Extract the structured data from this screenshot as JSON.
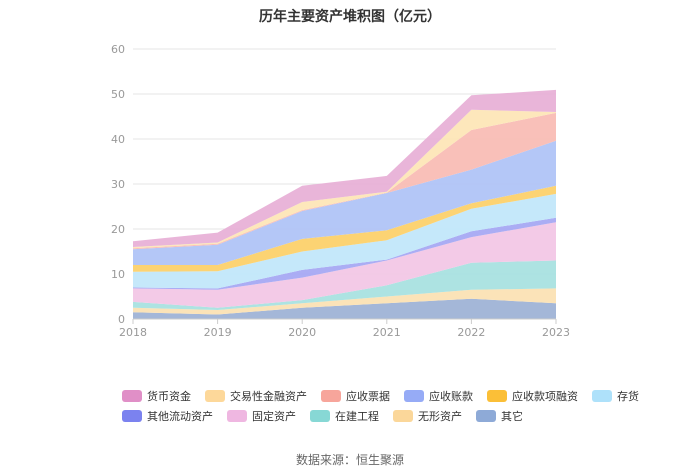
{
  "chart_data": {
    "type": "area",
    "title": "历年主要资产堆积图（亿元）",
    "x": [
      "2018",
      "2019",
      "2020",
      "2021",
      "2022",
      "2023"
    ],
    "ylim": [
      0,
      60
    ],
    "yticks": [
      0,
      10,
      20,
      30,
      40,
      50,
      60
    ],
    "grid": true,
    "legend_position": "bottom",
    "series": [
      {
        "name": "其它",
        "color": "#9fb3d6",
        "values": [
          1.5,
          1.0,
          2.5,
          3.5,
          4.5,
          3.5
        ]
      },
      {
        "name": "无形资产",
        "color": "#fbe1b4",
        "values": [
          1.0,
          1.0,
          1.0,
          1.5,
          2.0,
          3.3
        ]
      },
      {
        "name": "在建工程",
        "color": "#a9e2e0",
        "values": [
          1.3,
          0.5,
          0.7,
          2.5,
          6.0,
          6.2
        ]
      },
      {
        "name": "固定资产",
        "color": "#f2c7e6",
        "values": [
          3.0,
          4.0,
          5.0,
          5.5,
          5.7,
          8.5
        ]
      },
      {
        "name": "其他流动资产",
        "color": "#a7a9f3",
        "values": [
          0.2,
          0.3,
          1.7,
          0.2,
          1.3,
          1.0
        ]
      },
      {
        "name": "存货",
        "color": "#c2e7fa",
        "values": [
          3.5,
          3.8,
          4.1,
          4.3,
          5.0,
          5.3
        ]
      },
      {
        "name": "应收款项融资",
        "color": "#fcd16c",
        "values": [
          1.5,
          1.4,
          2.8,
          2.2,
          1.2,
          1.8
        ]
      },
      {
        "name": "应收账款",
        "color": "#b0c4f7",
        "values": [
          3.5,
          4.5,
          6.2,
          8.3,
          7.5,
          10.0
        ]
      },
      {
        "name": "应收票据",
        "color": "#f9bdb5",
        "values": [
          0.2,
          0.2,
          0.2,
          0.1,
          8.8,
          6.2
        ]
      },
      {
        "name": "交易性金融资产",
        "color": "#fde6b7",
        "values": [
          0.3,
          0.3,
          1.8,
          0.2,
          4.5,
          0.2
        ]
      },
      {
        "name": "货币资金",
        "color": "#e8b1d7",
        "values": [
          1.3,
          2.2,
          3.6,
          3.5,
          3.2,
          4.9
        ]
      }
    ],
    "legend_rows": [
      [
        "货币资金",
        "交易性金融资产",
        "应收票据",
        "应收账款",
        "应收款项融资",
        "存货"
      ],
      [
        "其他流动资产",
        "固定资产",
        "在建工程",
        "无形资产",
        "其它"
      ]
    ],
    "legend_colors": {
      "货币资金": "#e08fc7",
      "交易性金融资产": "#fdd89a",
      "应收票据": "#f7a59b",
      "应收账款": "#96abf6",
      "应收款项融资": "#fbbf37",
      "存货": "#aee1fa",
      "其他流动资产": "#7b82ef",
      "固定资产": "#efb7e1",
      "在建工程": "#87d8d5",
      "无形资产": "#fbd79a",
      "其它": "#8eaad7"
    }
  },
  "source": "数据来源：恒生聚源"
}
